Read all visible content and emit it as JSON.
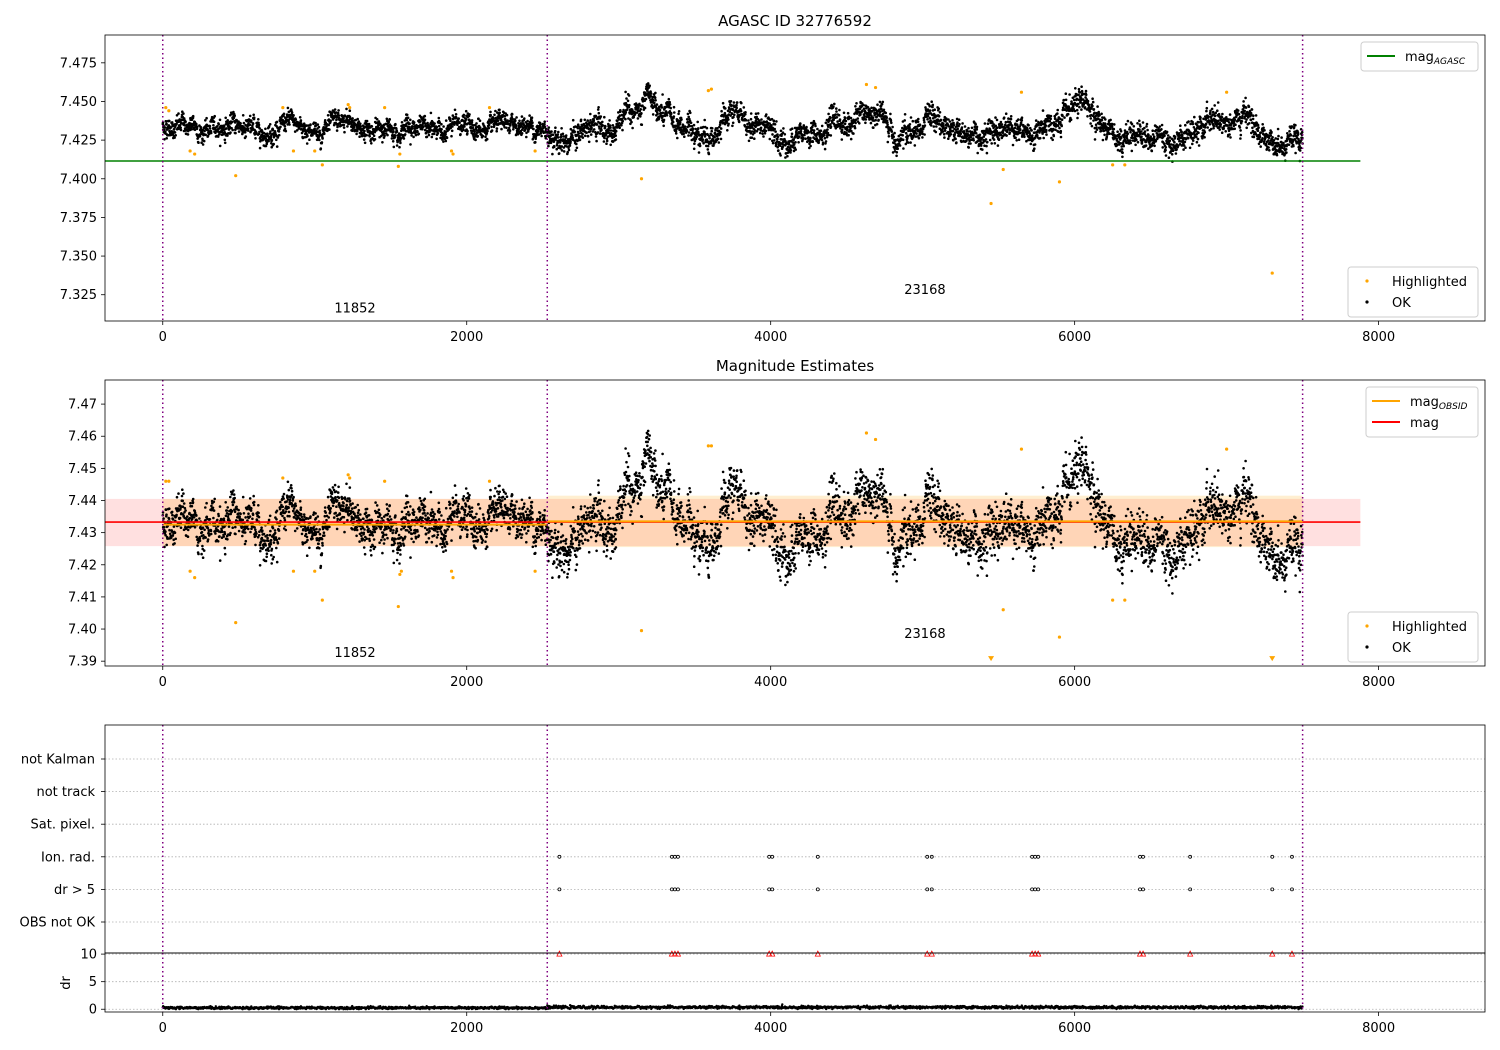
{
  "chart_data": [
    {
      "type": "scatter",
      "title": "AGASC ID 32776592",
      "xlim": [
        -380,
        8700
      ],
      "ylim": [
        7.308,
        7.493
      ],
      "xticks": [
        0,
        2000,
        4000,
        6000,
        8000
      ],
      "yticks": [
        7.325,
        7.35,
        7.375,
        7.4,
        7.425,
        7.45,
        7.475
      ],
      "grid": false,
      "obsid_boundaries": [
        0,
        2530,
        7500
      ],
      "obsid_labels": [
        {
          "text": "11852",
          "x": 1265,
          "y": 7.316
        },
        {
          "text": "23168",
          "x": 5015,
          "y": 7.328
        }
      ],
      "lines": [
        {
          "name": "mag",
          "subscript": "AGASC",
          "y": 7.4115,
          "x": [
            -380,
            7880
          ],
          "color": "#008000"
        }
      ],
      "legend_top": {
        "position": "upper right",
        "entries": [
          {
            "name": "mag",
            "subscript": "AGASC",
            "color": "#008000"
          }
        ]
      },
      "legend_bottom": {
        "position": "lower right",
        "entries": [
          {
            "name": "Highlighted",
            "color": "#ffa500"
          },
          {
            "name": "OK",
            "color": "#000000"
          }
        ]
      },
      "series": [
        {
          "name": "OK",
          "color": "#000000",
          "x_range": [
            0,
            7500
          ],
          "values_mean": 7.433,
          "note_points": 5000
        },
        {
          "name": "Highlighted",
          "color": "#ffa500",
          "points": [
            [
              20,
              7.446
            ],
            [
              40,
              7.444
            ],
            [
              180,
              7.418
            ],
            [
              210,
              7.416
            ],
            [
              480,
              7.402
            ],
            [
              790,
              7.446
            ],
            [
              860,
              7.418
            ],
            [
              1000,
              7.418
            ],
            [
              1050,
              7.409
            ],
            [
              1220,
              7.448
            ],
            [
              1230,
              7.446
            ],
            [
              1460,
              7.446
            ],
            [
              1550,
              7.408
            ],
            [
              1560,
              7.416
            ],
            [
              1900,
              7.418
            ],
            [
              1910,
              7.416
            ],
            [
              2150,
              7.446
            ],
            [
              2450,
              7.418
            ],
            [
              3150,
              7.4
            ],
            [
              3590,
              7.457
            ],
            [
              3610,
              7.458
            ],
            [
              4630,
              7.461
            ],
            [
              4690,
              7.459
            ],
            [
              5450,
              7.384
            ],
            [
              5530,
              7.406
            ],
            [
              5650,
              7.456
            ],
            [
              5900,
              7.398
            ],
            [
              6250,
              7.409
            ],
            [
              6330,
              7.409
            ],
            [
              7000,
              7.456
            ],
            [
              7300,
              7.339
            ]
          ]
        }
      ]
    },
    {
      "type": "scatter",
      "title": "Magnitude Estimates",
      "xlim": [
        -380,
        8700
      ],
      "ylim": [
        7.3885,
        7.4775
      ],
      "xticks": [
        0,
        2000,
        4000,
        6000,
        8000
      ],
      "yticks": [
        7.39,
        7.4,
        7.41,
        7.42,
        7.43,
        7.44,
        7.45,
        7.46,
        7.47
      ],
      "grid": false,
      "obsid_boundaries": [
        0,
        2530,
        7500
      ],
      "obsid_labels": [
        {
          "text": "11852",
          "x": 1265,
          "y": 7.3925
        },
        {
          "text": "23168",
          "x": 5015,
          "y": 7.3985
        }
      ],
      "lines": [
        {
          "name": "mag",
          "color": "#ff0000",
          "y": 7.4333,
          "x": [
            -380,
            7880
          ]
        },
        {
          "name": "mag",
          "subscript": "OBSID",
          "color": "#ffa500",
          "segments": [
            {
              "x": [
                0,
                2530
              ],
              "y": 7.4325
            },
            {
              "x": [
                2530,
                7500
              ],
              "y": 7.4335
            }
          ]
        }
      ],
      "bands": [
        {
          "color": "#ff0000",
          "opacity": 0.12,
          "x": [
            -380,
            7880
          ],
          "y": [
            7.4258,
            7.4405
          ]
        },
        {
          "color": "#ffa500",
          "opacity": 0.18,
          "x": [
            0,
            2530
          ],
          "y": [
            7.4258,
            7.4405
          ]
        },
        {
          "color": "#ffa500",
          "opacity": 0.18,
          "x": [
            2530,
            7500
          ],
          "y": [
            7.4255,
            7.4415
          ]
        }
      ],
      "legend_top": {
        "position": "upper right",
        "entries": [
          {
            "name": "mag",
            "subscript": "OBSID",
            "color": "#ffa500"
          },
          {
            "name": "mag",
            "color": "#ff0000"
          }
        ]
      },
      "legend_bottom": {
        "position": "lower right",
        "entries": [
          {
            "name": "Highlighted",
            "color": "#ffa500"
          },
          {
            "name": "OK",
            "color": "#000000"
          }
        ]
      },
      "series": [
        {
          "name": "OK",
          "color": "#000000",
          "x_range": [
            0,
            7500
          ],
          "values_mean": 7.433
        },
        {
          "name": "Highlighted",
          "color": "#ffa500",
          "points": [
            [
              20,
              7.446
            ],
            [
              40,
              7.446
            ],
            [
              180,
              7.418
            ],
            [
              210,
              7.416
            ],
            [
              480,
              7.402
            ],
            [
              790,
              7.447
            ],
            [
              860,
              7.418
            ],
            [
              1000,
              7.418
            ],
            [
              1050,
              7.409
            ],
            [
              1220,
              7.448
            ],
            [
              1230,
              7.447
            ],
            [
              1460,
              7.446
            ],
            [
              1550,
              7.407
            ],
            [
              1560,
              7.417
            ],
            [
              1570,
              7.418
            ],
            [
              1900,
              7.418
            ],
            [
              1910,
              7.416
            ],
            [
              2150,
              7.446
            ],
            [
              2450,
              7.418
            ],
            [
              3150,
              7.3995
            ],
            [
              3590,
              7.457
            ],
            [
              3610,
              7.457
            ],
            [
              4630,
              7.461
            ],
            [
              4690,
              7.459
            ],
            [
              5530,
              7.406
            ],
            [
              5650,
              7.456
            ],
            [
              5900,
              7.3975
            ],
            [
              6250,
              7.409
            ],
            [
              6330,
              7.409
            ],
            [
              7000,
              7.456
            ]
          ]
        },
        {
          "name": "Highlighted (clipped)",
          "color": "#ffa500",
          "marker": "triangle-down",
          "points": [
            [
              5450,
              7.39
            ],
            [
              7300,
              7.39
            ]
          ]
        }
      ]
    },
    {
      "type": "scatter",
      "title": "",
      "xlim": [
        -380,
        8700
      ],
      "ytick_labels": [
        "not Kalman",
        "not track",
        "Sat. pixel.",
        "Ion. rad.",
        "dr > 5",
        "OBS not OK"
      ],
      "grid": "horizontal dotted",
      "obsid_boundaries": [
        0,
        2530,
        7500
      ],
      "flag_points": {
        "Ion. rad.": [
          2610,
          3350,
          3370,
          3390,
          3990,
          4010,
          4310,
          5030,
          5060,
          5720,
          5740,
          5760,
          6430,
          6450,
          6760,
          7300,
          7430
        ],
        "dr > 5": [
          2610,
          3350,
          3370,
          3390,
          3990,
          4010,
          4310,
          5030,
          5060,
          5720,
          5740,
          5760,
          6430,
          6450,
          6760,
          7300,
          7430
        ]
      }
    },
    {
      "type": "scatter",
      "title": "",
      "ylabel": "dr",
      "xlim": [
        -380,
        8700
      ],
      "ylim": [
        -0.5,
        10.2
      ],
      "xticks": [
        0,
        2000,
        4000,
        6000,
        8000
      ],
      "yticks": [
        0,
        5,
        10
      ],
      "grid": "horizontal dotted",
      "obsid_boundaries": [
        0,
        2530,
        7500
      ],
      "clipped_points_at": 10,
      "clipped_x": [
        2610,
        3350,
        3370,
        3390,
        3990,
        4010,
        4310,
        5030,
        5060,
        5720,
        5740,
        5760,
        6430,
        6450,
        6760,
        7300,
        7430
      ],
      "series": [
        {
          "name": "dr",
          "color": "#000000",
          "x_range": [
            0,
            7500
          ],
          "values_mean": 0.25
        }
      ]
    }
  ]
}
